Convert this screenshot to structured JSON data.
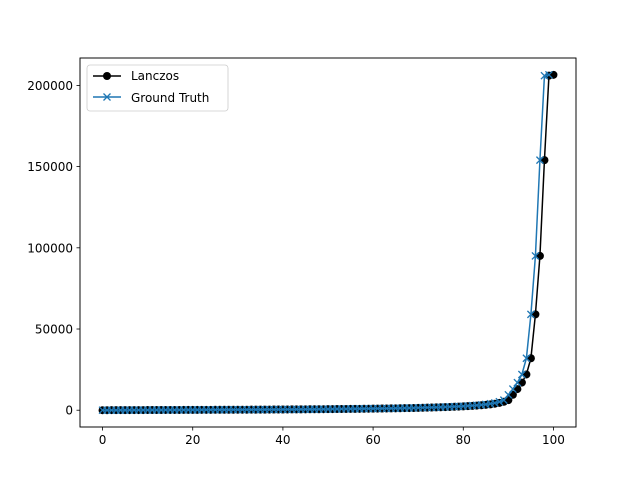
{
  "chart_data": {
    "type": "line",
    "title": "",
    "xlabel": "",
    "ylabel": "",
    "xlim": [
      -5,
      105
    ],
    "ylim": [
      -10337,
      216874
    ],
    "grid": false,
    "legend_position": "upper-left",
    "xticks": [
      0,
      20,
      40,
      60,
      80,
      100
    ],
    "xtick_labels": [
      "0",
      "20",
      "40",
      "60",
      "80",
      "100"
    ],
    "yticks": [
      0,
      50000,
      100000,
      150000,
      200000
    ],
    "ytick_labels": [
      "0",
      "50000",
      "100000",
      "150000",
      "200000"
    ],
    "series": [
      {
        "name": "Lanczos",
        "color": "#000000",
        "marker": "circle",
        "x": [
          0,
          1,
          2,
          3,
          4,
          5,
          6,
          7,
          8,
          9,
          10,
          11,
          12,
          13,
          14,
          15,
          16,
          17,
          18,
          19,
          20,
          21,
          22,
          23,
          24,
          25,
          26,
          27,
          28,
          29,
          30,
          31,
          32,
          33,
          34,
          35,
          36,
          37,
          38,
          39,
          40,
          41,
          42,
          43,
          44,
          45,
          46,
          47,
          48,
          49,
          50,
          51,
          52,
          53,
          54,
          55,
          56,
          57,
          58,
          59,
          60,
          61,
          62,
          63,
          64,
          65,
          66,
          67,
          68,
          69,
          70,
          71,
          72,
          73,
          74,
          75,
          76,
          77,
          78,
          79,
          80,
          81,
          82,
          83,
          84,
          85,
          86,
          87,
          88,
          89,
          90,
          91,
          92,
          93,
          94,
          95,
          96,
          97,
          98,
          99,
          100
        ],
        "y": [
          0,
          10,
          20,
          30,
          40,
          50,
          60,
          70,
          80,
          90,
          100,
          110,
          120,
          130,
          140,
          150,
          160,
          170,
          180,
          190,
          200,
          210,
          220,
          230,
          240,
          250,
          260,
          270,
          280,
          290,
          300,
          310,
          320,
          330,
          340,
          350,
          360,
          380,
          400,
          420,
          440,
          460,
          480,
          500,
          520,
          540,
          560,
          580,
          600,
          620,
          650,
          680,
          710,
          740,
          770,
          800,
          830,
          860,
          890,
          920,
          950,
          990,
          1030,
          1070,
          1110,
          1150,
          1200,
          1250,
          1300,
          1360,
          1420,
          1490,
          1560,
          1640,
          1720,
          1810,
          1900,
          2000,
          2110,
          2230,
          2360,
          2500,
          2660,
          2840,
          3050,
          3300,
          3600,
          4000,
          4500,
          5200,
          6200,
          9500,
          13000,
          17000,
          22000,
          32000,
          59000,
          95000,
          154000,
          206000,
          206500
        ]
      },
      {
        "name": "Ground Truth",
        "color": "#1f77b4",
        "marker": "x",
        "x": [
          0,
          1,
          2,
          3,
          4,
          5,
          6,
          7,
          8,
          9,
          10,
          11,
          12,
          13,
          14,
          15,
          16,
          17,
          18,
          19,
          20,
          21,
          22,
          23,
          24,
          25,
          26,
          27,
          28,
          29,
          30,
          31,
          32,
          33,
          34,
          35,
          36,
          37,
          38,
          39,
          40,
          41,
          42,
          43,
          44,
          45,
          46,
          47,
          48,
          49,
          50,
          51,
          52,
          53,
          54,
          55,
          56,
          57,
          58,
          59,
          60,
          61,
          62,
          63,
          64,
          65,
          66,
          67,
          68,
          69,
          70,
          71,
          72,
          73,
          74,
          75,
          76,
          77,
          78,
          79,
          80,
          81,
          82,
          83,
          84,
          85,
          86,
          87,
          88,
          89,
          90,
          91,
          92,
          93,
          94,
          95,
          96,
          97,
          98,
          99
        ],
        "y": [
          10,
          20,
          30,
          40,
          50,
          60,
          70,
          80,
          90,
          100,
          110,
          120,
          130,
          140,
          150,
          160,
          170,
          180,
          190,
          200,
          210,
          220,
          230,
          240,
          250,
          260,
          270,
          280,
          290,
          300,
          310,
          320,
          330,
          340,
          350,
          360,
          380,
          400,
          420,
          440,
          460,
          480,
          500,
          520,
          540,
          560,
          580,
          600,
          620,
          650,
          680,
          710,
          740,
          770,
          800,
          830,
          860,
          890,
          920,
          950,
          990,
          1030,
          1070,
          1110,
          1150,
          1200,
          1250,
          1300,
          1360,
          1420,
          1490,
          1560,
          1640,
          1720,
          1810,
          1900,
          2000,
          2110,
          2230,
          2360,
          2500,
          2660,
          2840,
          3050,
          3300,
          3600,
          4000,
          4500,
          5200,
          6200,
          9500,
          13000,
          17000,
          22000,
          32000,
          59000,
          95000,
          154000,
          206000,
          206500
        ]
      }
    ]
  }
}
